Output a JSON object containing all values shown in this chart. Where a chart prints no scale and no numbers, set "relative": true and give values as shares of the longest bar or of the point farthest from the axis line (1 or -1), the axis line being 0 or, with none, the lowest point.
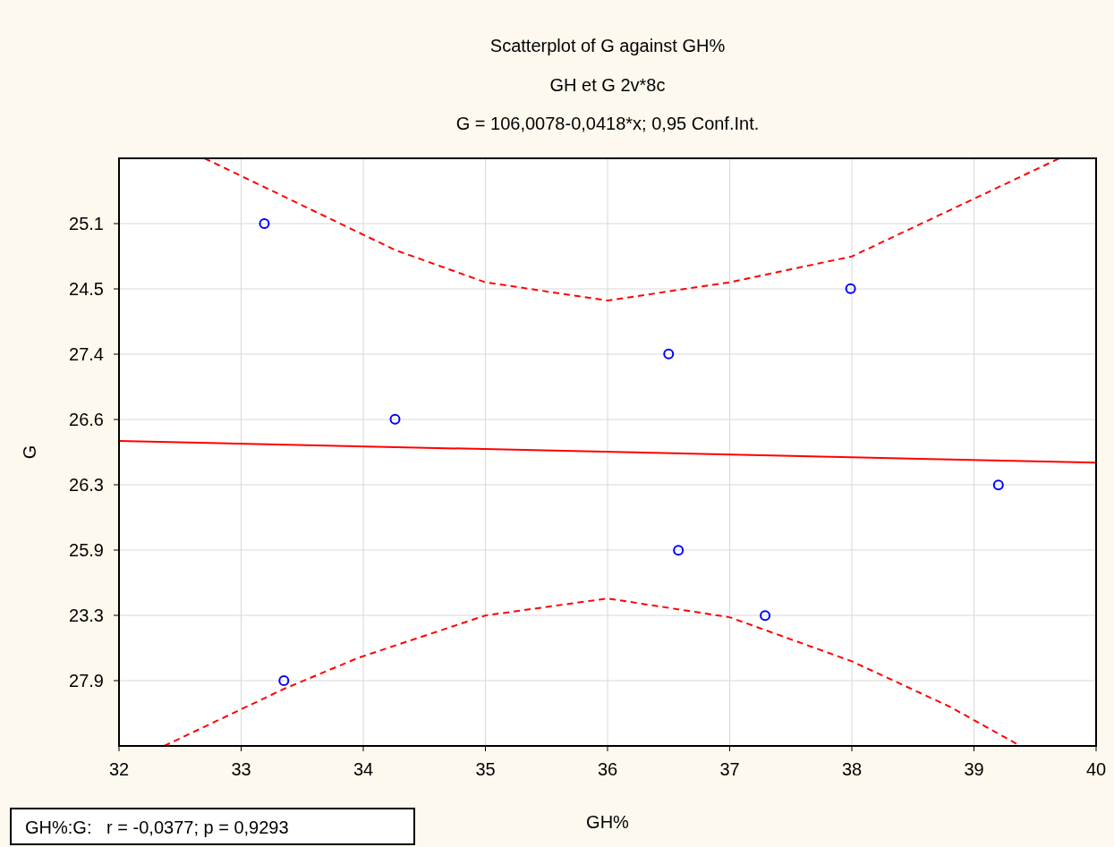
{
  "chart_data": {
    "type": "scatter",
    "title": "Scatterplot of G against GH%",
    "subtitle": "GH et G 2v*8c\nG = 106,0078-0,0418*x; 0,95 Conf.Int.",
    "xlabel": "GH%",
    "ylabel": "G",
    "annotations": [
      "GH%:G:   r = -0,0377; p = 0,9293"
    ],
    "xlim": [
      32,
      40
    ],
    "xticks": [
      32,
      33,
      34,
      35,
      36,
      37,
      38,
      39,
      40
    ],
    "relative": true,
    "y_categories": [
      "25.1",
      "24.5",
      "27.4",
      "26.6",
      "26.3",
      "25.9",
      "23.3",
      "27.9"
    ],
    "grid": true,
    "series": [
      {
        "color": "#0000ff",
        "marker": "circle",
        "x": [
          33.19,
          37.99,
          36.5,
          34.26,
          39.2,
          36.58,
          37.29,
          33.35
        ],
        "values": [
          0.889,
          0.778,
          0.667,
          0.556,
          0.444,
          0.333,
          0.222,
          0.111
        ]
      },
      {
        "type": "line",
        "color": "#ff0000",
        "line_style": "solid",
        "x": [
          32,
          40
        ],
        "values": [
          0.519,
          0.482
        ]
      },
      {
        "type": "line",
        "color": "#ff0000",
        "line_style": "dashed",
        "x": [
          32.7,
          33.2,
          34.26,
          35,
          36,
          37,
          38,
          39.08,
          39.7
        ],
        "values": [
          1,
          0.95,
          0.844,
          0.789,
          0.758,
          0.789,
          0.833,
          0.939,
          1
        ]
      },
      {
        "type": "line",
        "color": "#ff0000",
        "line_style": "dashed",
        "x": [
          32.37,
          33.35,
          33.96,
          35,
          36,
          37,
          38,
          38.8,
          39.38
        ],
        "values": [
          0,
          0.097,
          0.15,
          0.222,
          0.251,
          0.219,
          0.144,
          0.067,
          0
        ]
      }
    ]
  }
}
